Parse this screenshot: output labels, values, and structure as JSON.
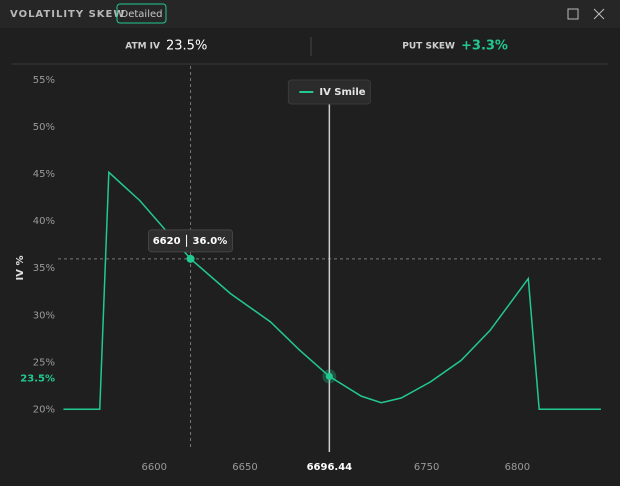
{
  "header": {
    "title": "VOLATILITY SKEW",
    "badge": "Detailed"
  },
  "stats": [
    {
      "label": "ATM IV",
      "value": "23.5%"
    },
    {
      "label": "PUT SKEW",
      "value": "+3.3%"
    }
  ],
  "chart_data": {
    "type": "line",
    "y_label": "IV %",
    "x": [
      6550,
      6570,
      6575,
      6592,
      6620,
      6642,
      6664,
      6680,
      6696.44,
      6714,
      6725,
      6736,
      6752,
      6769,
      6785,
      6806,
      6812,
      6846
    ],
    "series": [
      {
        "name": "IV Smile",
        "color": "#22c98f",
        "values": [
          20,
          20,
          45.2,
          42.2,
          36,
          32.3,
          29.3,
          26.3,
          23.5,
          21.4,
          20.7,
          21.2,
          22.9,
          25.2,
          28.4,
          33.9,
          20,
          20
        ]
      }
    ],
    "xlim": [
      6547,
      6851
    ],
    "ylim": [
      17.8,
      56.5
    ],
    "xticks": [
      6600,
      6650,
      6750,
      6800
    ],
    "yticks": [
      {
        "value": 20,
        "label": "20%"
      },
      {
        "value": 25,
        "label": "25%"
      },
      {
        "value": 30,
        "label": "30%"
      },
      {
        "value": 35,
        "label": "35%"
      },
      {
        "value": 40,
        "label": "40%"
      },
      {
        "value": 45,
        "label": "45%"
      },
      {
        "value": 50,
        "label": "50%"
      },
      {
        "value": 55,
        "label": "55%"
      }
    ],
    "crosshair": {
      "x": 6696.44,
      "y": {
        "value": 23.5,
        "label": "23.5%"
      }
    },
    "tooltip": {
      "x": 6620,
      "y": {
        "value": 36,
        "label": "36.0%"
      }
    }
  }
}
